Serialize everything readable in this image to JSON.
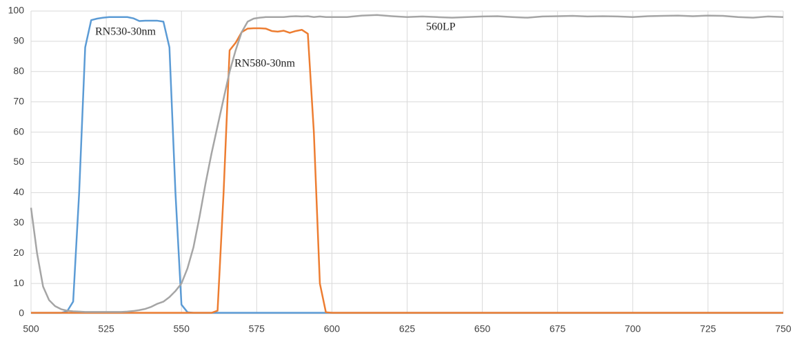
{
  "chart_data": {
    "type": "line",
    "x": [
      500,
      502,
      504,
      506,
      508,
      510,
      512,
      514,
      516,
      518,
      520,
      522,
      524,
      526,
      528,
      530,
      532,
      534,
      536,
      538,
      540,
      542,
      544,
      546,
      548,
      550,
      552,
      554,
      556,
      558,
      560,
      562,
      564,
      566,
      568,
      570,
      572,
      574,
      576,
      578,
      580,
      582,
      584,
      586,
      588,
      590,
      592,
      594,
      596,
      598,
      600,
      605,
      610,
      615,
      620,
      625,
      630,
      635,
      640,
      645,
      650,
      655,
      660,
      665,
      670,
      675,
      680,
      685,
      690,
      695,
      700,
      705,
      710,
      715,
      720,
      725,
      730,
      735,
      740,
      745,
      750
    ],
    "series": [
      {
        "name": "RN530-30nm",
        "color": "#5b9bd5",
        "values": [
          0.3,
          0.3,
          0.3,
          0.3,
          0.3,
          0.3,
          0.8,
          4,
          40,
          88,
          97,
          97.5,
          97.8,
          98,
          98,
          98,
          98,
          97.6,
          96.7,
          96.8,
          96.8,
          96.8,
          96.5,
          88,
          40,
          3,
          0.5,
          0.3,
          0.3,
          0.3,
          0.3,
          0.3,
          0.3,
          0.3,
          0.3,
          0.3,
          0.3,
          0.3,
          0.3,
          0.3,
          0.3,
          0.3,
          0.3,
          0.3,
          0.3,
          0.3,
          0.3,
          0.3,
          0.3,
          0.3,
          0.3,
          0.3,
          0.3,
          0.3,
          0.3,
          0.3,
          0.3,
          0.3,
          0.3,
          0.3,
          0.3,
          0.3,
          0.3,
          0.3,
          0.3,
          0.3,
          0.3,
          0.3,
          0.3,
          0.3,
          0.3,
          0.3,
          0.3,
          0.3,
          0.3,
          0.3,
          0.3,
          0.3,
          0.3,
          0.3,
          0.3
        ]
      },
      {
        "name": "RN580-30nm",
        "color": "#ed7d31",
        "values": [
          0.3,
          0.3,
          0.3,
          0.3,
          0.3,
          0.3,
          0.3,
          0.3,
          0.3,
          0.3,
          0.3,
          0.3,
          0.3,
          0.3,
          0.3,
          0.3,
          0.3,
          0.3,
          0.3,
          0.3,
          0.3,
          0.3,
          0.3,
          0.3,
          0.3,
          0.3,
          0.3,
          0.3,
          0.3,
          0.3,
          0.3,
          1,
          40,
          87,
          89.5,
          93,
          94.2,
          94.3,
          94.3,
          94.2,
          93.4,
          93.2,
          93.5,
          92.8,
          93.4,
          93.8,
          92.5,
          60,
          10,
          0.5,
          0.3,
          0.3,
          0.3,
          0.3,
          0.3,
          0.3,
          0.3,
          0.3,
          0.3,
          0.3,
          0.3,
          0.3,
          0.3,
          0.3,
          0.3,
          0.3,
          0.3,
          0.3,
          0.3,
          0.3,
          0.3,
          0.3,
          0.3,
          0.3,
          0.3,
          0.3,
          0.3,
          0.3,
          0.3,
          0.3,
          0.3
        ]
      },
      {
        "name": "560LP",
        "color": "#a5a5a5",
        "values": [
          35,
          20,
          9,
          4.5,
          2.5,
          1.5,
          1,
          0.8,
          0.7,
          0.6,
          0.6,
          0.6,
          0.6,
          0.6,
          0.6,
          0.6,
          0.7,
          0.9,
          1.2,
          1.6,
          2.3,
          3.3,
          4,
          5.5,
          7.5,
          10,
          15,
          22,
          32,
          43,
          53,
          62,
          71,
          80,
          87,
          93,
          96.5,
          97.5,
          97.8,
          98,
          98,
          98,
          98,
          98.2,
          98.3,
          98.2,
          98.3,
          98,
          98.2,
          98,
          98,
          98,
          98.5,
          98.7,
          98.3,
          98,
          98.2,
          98,
          97.8,
          98,
          98.2,
          98.3,
          98,
          97.8,
          98.2,
          98.3,
          98.4,
          98.2,
          98.3,
          98.2,
          98,
          98.3,
          98.4,
          98.5,
          98.3,
          98.5,
          98.4,
          98,
          97.8,
          98.2,
          98
        ]
      }
    ],
    "xlim": [
      500,
      750
    ],
    "xticks": [
      500,
      525,
      550,
      575,
      600,
      625,
      650,
      675,
      700,
      725,
      750
    ],
    "ylim": [
      0,
      100
    ],
    "yticks": [
      0,
      10,
      20,
      30,
      40,
      50,
      60,
      70,
      80,
      90,
      100
    ],
    "grid": true
  }
}
